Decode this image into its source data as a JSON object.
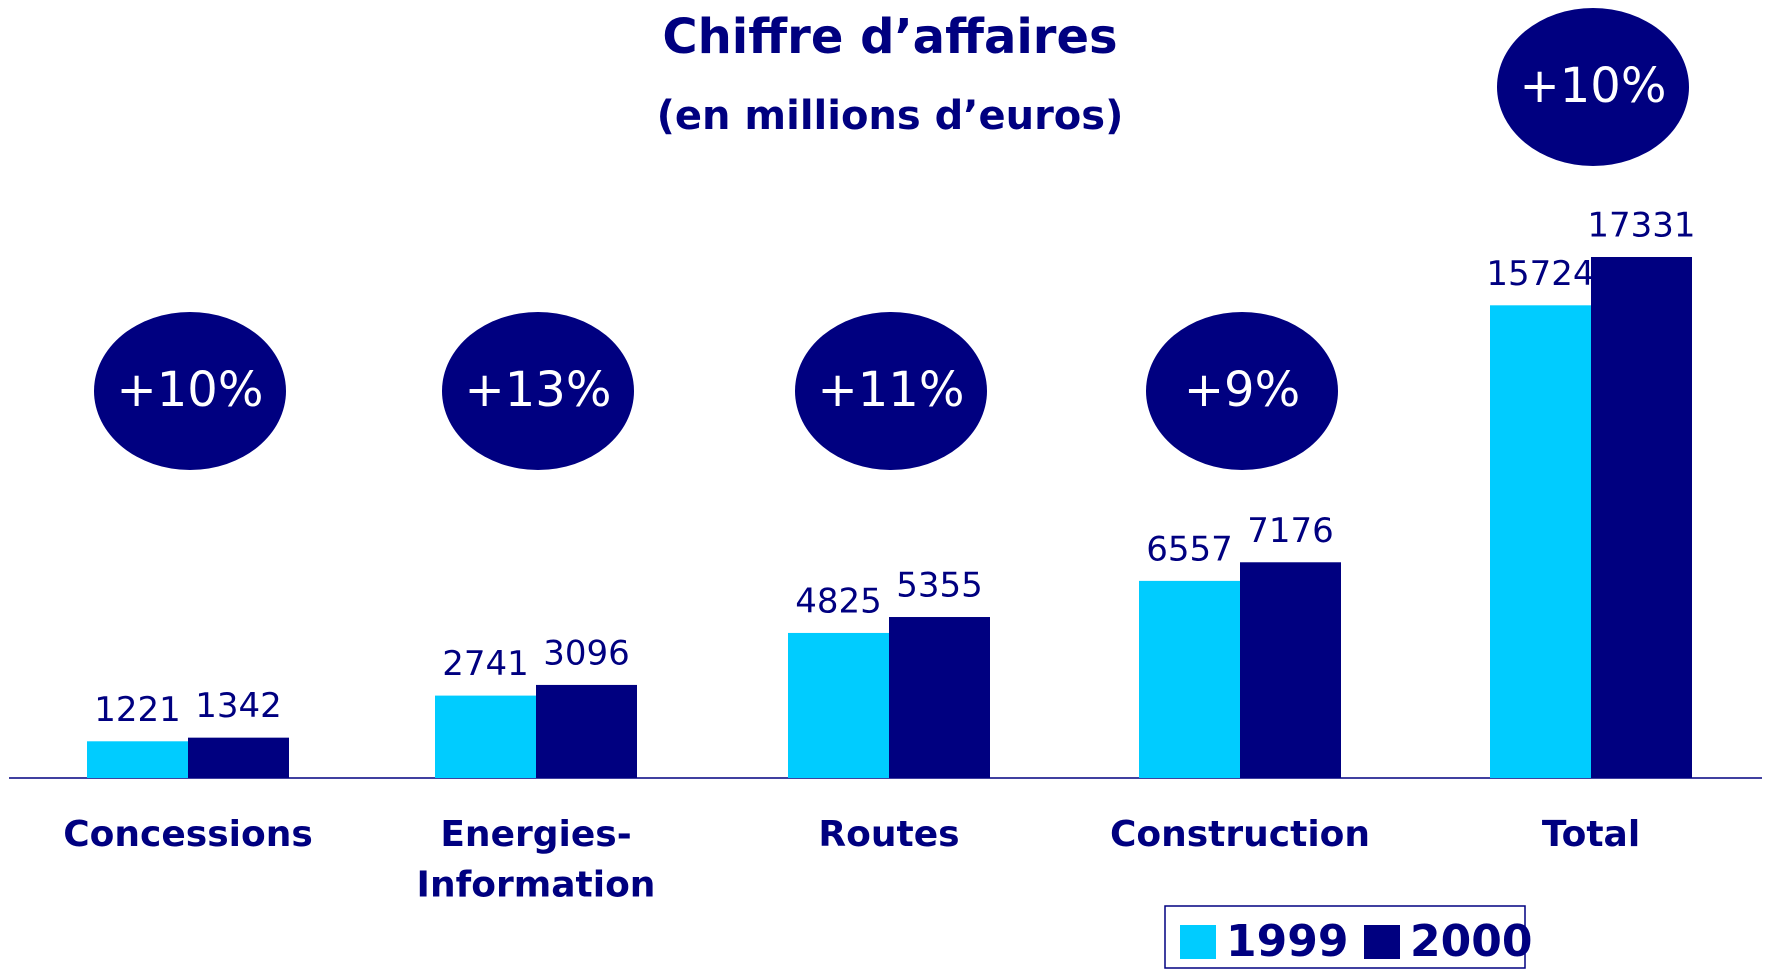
{
  "chart_data": {
    "type": "bar",
    "title": "Chiffre d’affaires",
    "subtitle": "(en millions d’euros)",
    "categories": [
      "Concessions",
      "Energies-\nInformation",
      "Routes",
      "Construction",
      "Total"
    ],
    "annotations": [
      "+10%",
      "+13%",
      "+11%",
      "+9%",
      "+10%"
    ],
    "series": [
      {
        "name": "1999",
        "color": "#00ccff",
        "values": [
          1221,
          2741,
          4825,
          6557,
          15724
        ]
      },
      {
        "name": "2000",
        "color": "#000080",
        "values": [
          1342,
          3096,
          5355,
          7176,
          17331
        ]
      }
    ],
    "legend": "bottom-right"
  }
}
